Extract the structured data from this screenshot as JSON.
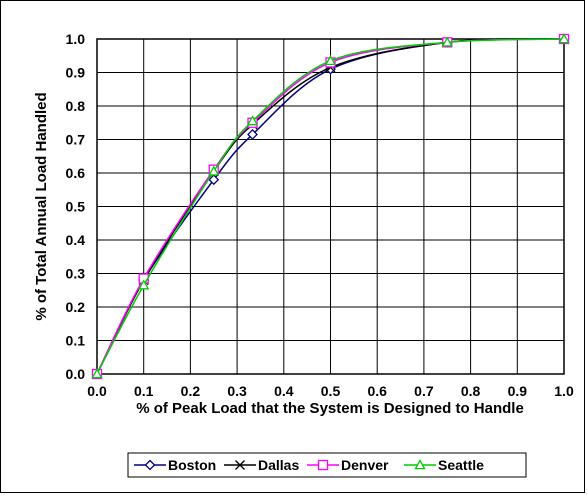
{
  "chart_data": {
    "type": "line",
    "title": "",
    "xlabel": "% of Peak Load that the System is Designed to Handle",
    "ylabel": "% of Total Annual Load Handled",
    "xlim": [
      0,
      1
    ],
    "ylim": [
      0,
      1
    ],
    "grid": true,
    "legend_position": "bottom",
    "x_ticks": [
      "0.0",
      "0.1",
      "0.2",
      "0.3",
      "0.4",
      "0.5",
      "0.6",
      "0.7",
      "0.8",
      "0.9",
      "1.0"
    ],
    "y_ticks": [
      "0.0",
      "0.1",
      "0.2",
      "0.3",
      "0.4",
      "0.5",
      "0.6",
      "0.7",
      "0.8",
      "0.9",
      "1.0"
    ],
    "series": [
      {
        "name": "Boston",
        "color": "#000080",
        "marker": "diamond",
        "x": [
          0,
          0.1,
          0.25,
          0.333,
          0.5,
          0.75,
          1.0
        ],
        "y": [
          0,
          0.28,
          0.58,
          0.715,
          0.91,
          0.99,
          1.0
        ]
      },
      {
        "name": "Dallas",
        "color": "#000000",
        "marker": "x",
        "x": [
          0,
          0.1,
          0.25,
          0.333,
          0.5,
          0.75,
          1.0
        ],
        "y": [
          0,
          0.28,
          0.605,
          0.745,
          0.915,
          0.99,
          1.0
        ]
      },
      {
        "name": "Denver",
        "color": "#ff00ff",
        "marker": "square",
        "x": [
          0,
          0.1,
          0.25,
          0.333,
          0.5,
          0.75,
          1.0
        ],
        "y": [
          0,
          0.285,
          0.61,
          0.75,
          0.93,
          0.99,
          1.0
        ]
      },
      {
        "name": "Seattle",
        "color": "#00cc00",
        "marker": "triangle",
        "x": [
          0,
          0.1,
          0.25,
          0.333,
          0.5,
          0.75,
          1.0
        ],
        "y": [
          0,
          0.265,
          0.605,
          0.755,
          0.935,
          0.99,
          1.0
        ]
      }
    ]
  }
}
